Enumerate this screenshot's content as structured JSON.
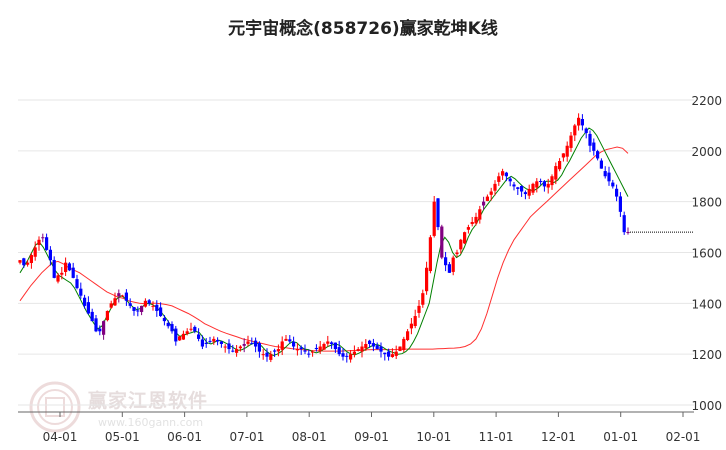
{
  "title": "元宇宙概念(858726)赢家乾坤K线",
  "watermark": {
    "text": "赢家江恩软件",
    "url": "www.160gann.com"
  },
  "colors": {
    "up": "#ff0000",
    "down": "#0000ff",
    "special": "#800080",
    "ma_short": "#008000",
    "ma_long": "#ff3030",
    "grid": "#e6e6e6"
  },
  "chart_data": {
    "type": "candlestick",
    "title": "元宇宙概念(858726)赢家乾坤K线",
    "y_ticks": [
      1000,
      1200,
      1400,
      1600,
      1800,
      2000,
      2200
    ],
    "ylim": [
      990,
      2220
    ],
    "x_ticks": [
      "04-01",
      "05-01",
      "06-01",
      "07-01",
      "08-01",
      "09-01",
      "10-01",
      "11-01",
      "12-01",
      "01-01",
      "02-01"
    ],
    "closes": [
      1570,
      1550,
      1560,
      1590,
      1620,
      1650,
      1660,
      1610,
      1570,
      1500,
      1510,
      1520,
      1560,
      1530,
      1500,
      1460,
      1430,
      1390,
      1360,
      1330,
      1290,
      1290,
      1330,
      1370,
      1400,
      1420,
      1440,
      1430,
      1410,
      1390,
      1370,
      1370,
      1390,
      1410,
      1400,
      1390,
      1370,
      1350,
      1330,
      1310,
      1290,
      1250,
      1270,
      1280,
      1290,
      1300,
      1290,
      1260,
      1230,
      1240,
      1250,
      1260,
      1250,
      1240,
      1230,
      1220,
      1210,
      1220,
      1230,
      1240,
      1250,
      1240,
      1230,
      1210,
      1200,
      1190,
      1200,
      1210,
      1220,
      1250,
      1260,
      1250,
      1230,
      1220,
      1220,
      1210,
      1200,
      1210,
      1220,
      1230,
      1240,
      1250,
      1240,
      1220,
      1200,
      1190,
      1190,
      1200,
      1210,
      1220,
      1230,
      1240,
      1240,
      1230,
      1220,
      1210,
      1200,
      1190,
      1200,
      1210,
      1230,
      1260,
      1290,
      1320,
      1350,
      1390,
      1440,
      1540,
      1660,
      1800,
      1700,
      1580,
      1550,
      1520,
      1580,
      1600,
      1650,
      1680,
      1700,
      1720,
      1740,
      1770,
      1800,
      1820,
      1840,
      1870,
      1900,
      1920,
      1900,
      1880,
      1860,
      1850,
      1840,
      1830,
      1850,
      1870,
      1880,
      1880,
      1860,
      1870,
      1900,
      1940,
      1960,
      1990,
      2020,
      2060,
      2100,
      2130,
      2100,
      2070,
      2020,
      2000,
      1970,
      1930,
      1900,
      1880,
      1860,
      1820,
      1760,
      1680,
      1680
    ],
    "last_close": 1680,
    "ma_long_values": [
      1410,
      1440,
      1470,
      1495,
      1520,
      1540,
      1560,
      1565,
      1555,
      1540,
      1530,
      1520,
      1505,
      1490,
      1475,
      1460,
      1445,
      1435,
      1425,
      1420,
      1410,
      1405,
      1400,
      1398,
      1400,
      1400,
      1398,
      1395,
      1390,
      1380,
      1370,
      1360,
      1348,
      1335,
      1320,
      1310,
      1300,
      1290,
      1282,
      1275,
      1268,
      1260,
      1255,
      1250,
      1245,
      1240,
      1235,
      1230,
      1228,
      1225,
      1222,
      1220,
      1218,
      1216,
      1214,
      1213,
      1212,
      1212,
      1212,
      1212,
      1213,
      1214,
      1215,
      1216,
      1217,
      1218,
      1218,
      1218,
      1218,
      1218,
      1219,
      1220,
      1220,
      1220,
      1220,
      1220,
      1220,
      1221,
      1222,
      1223,
      1224,
      1226,
      1230,
      1240,
      1260,
      1300,
      1360,
      1430,
      1500,
      1560,
      1610,
      1650,
      1680,
      1710,
      1740,
      1760,
      1780,
      1800,
      1820,
      1840,
      1860,
      1880,
      1900,
      1920,
      1940,
      1960,
      1980,
      1995,
      2005,
      2010,
      2015,
      2010,
      1990
    ],
    "ma_short_values": [
      1520,
      1545,
      1570,
      1600,
      1630,
      1640,
      1620,
      1590,
      1560,
      1530,
      1510,
      1500,
      1490,
      1480,
      1460,
      1430,
      1400,
      1370,
      1345,
      1320,
      1300,
      1310,
      1340,
      1370,
      1400,
      1420,
      1430,
      1420,
      1400,
      1385,
      1375,
      1380,
      1395,
      1400,
      1395,
      1385,
      1370,
      1350,
      1330,
      1305,
      1285,
      1270,
      1275,
      1280,
      1285,
      1290,
      1285,
      1265,
      1245,
      1240,
      1248,
      1255,
      1250,
      1242,
      1232,
      1223,
      1215,
      1218,
      1226,
      1236,
      1244,
      1242,
      1232,
      1215,
      1203,
      1195,
      1200,
      1210,
      1225,
      1240,
      1250,
      1245,
      1230,
      1220,
      1218,
      1210,
      1205,
      1210,
      1220,
      1230,
      1236,
      1240,
      1235,
      1222,
      1208,
      1200,
      1198,
      1204,
      1212,
      1222,
      1230,
      1238,
      1236,
      1228,
      1218,
      1210,
      1205,
      1200,
      1202,
      1210,
      1225,
      1250,
      1280,
      1320,
      1360,
      1400,
      1480,
      1560,
      1630,
      1660,
      1640,
      1600,
      1580,
      1590,
      1620,
      1660,
      1690,
      1710,
      1740,
      1770,
      1790,
      1810,
      1830,
      1850,
      1870,
      1890,
      1900,
      1890,
      1875,
      1860,
      1850,
      1845,
      1845,
      1855,
      1870,
      1880,
      1880,
      1875,
      1885,
      1905,
      1935,
      1960,
      1990,
      2020,
      2050,
      2070,
      2090,
      2080,
      2060,
      2030,
      2000,
      1970,
      1940,
      1910,
      1880,
      1850,
      1820
    ]
  }
}
